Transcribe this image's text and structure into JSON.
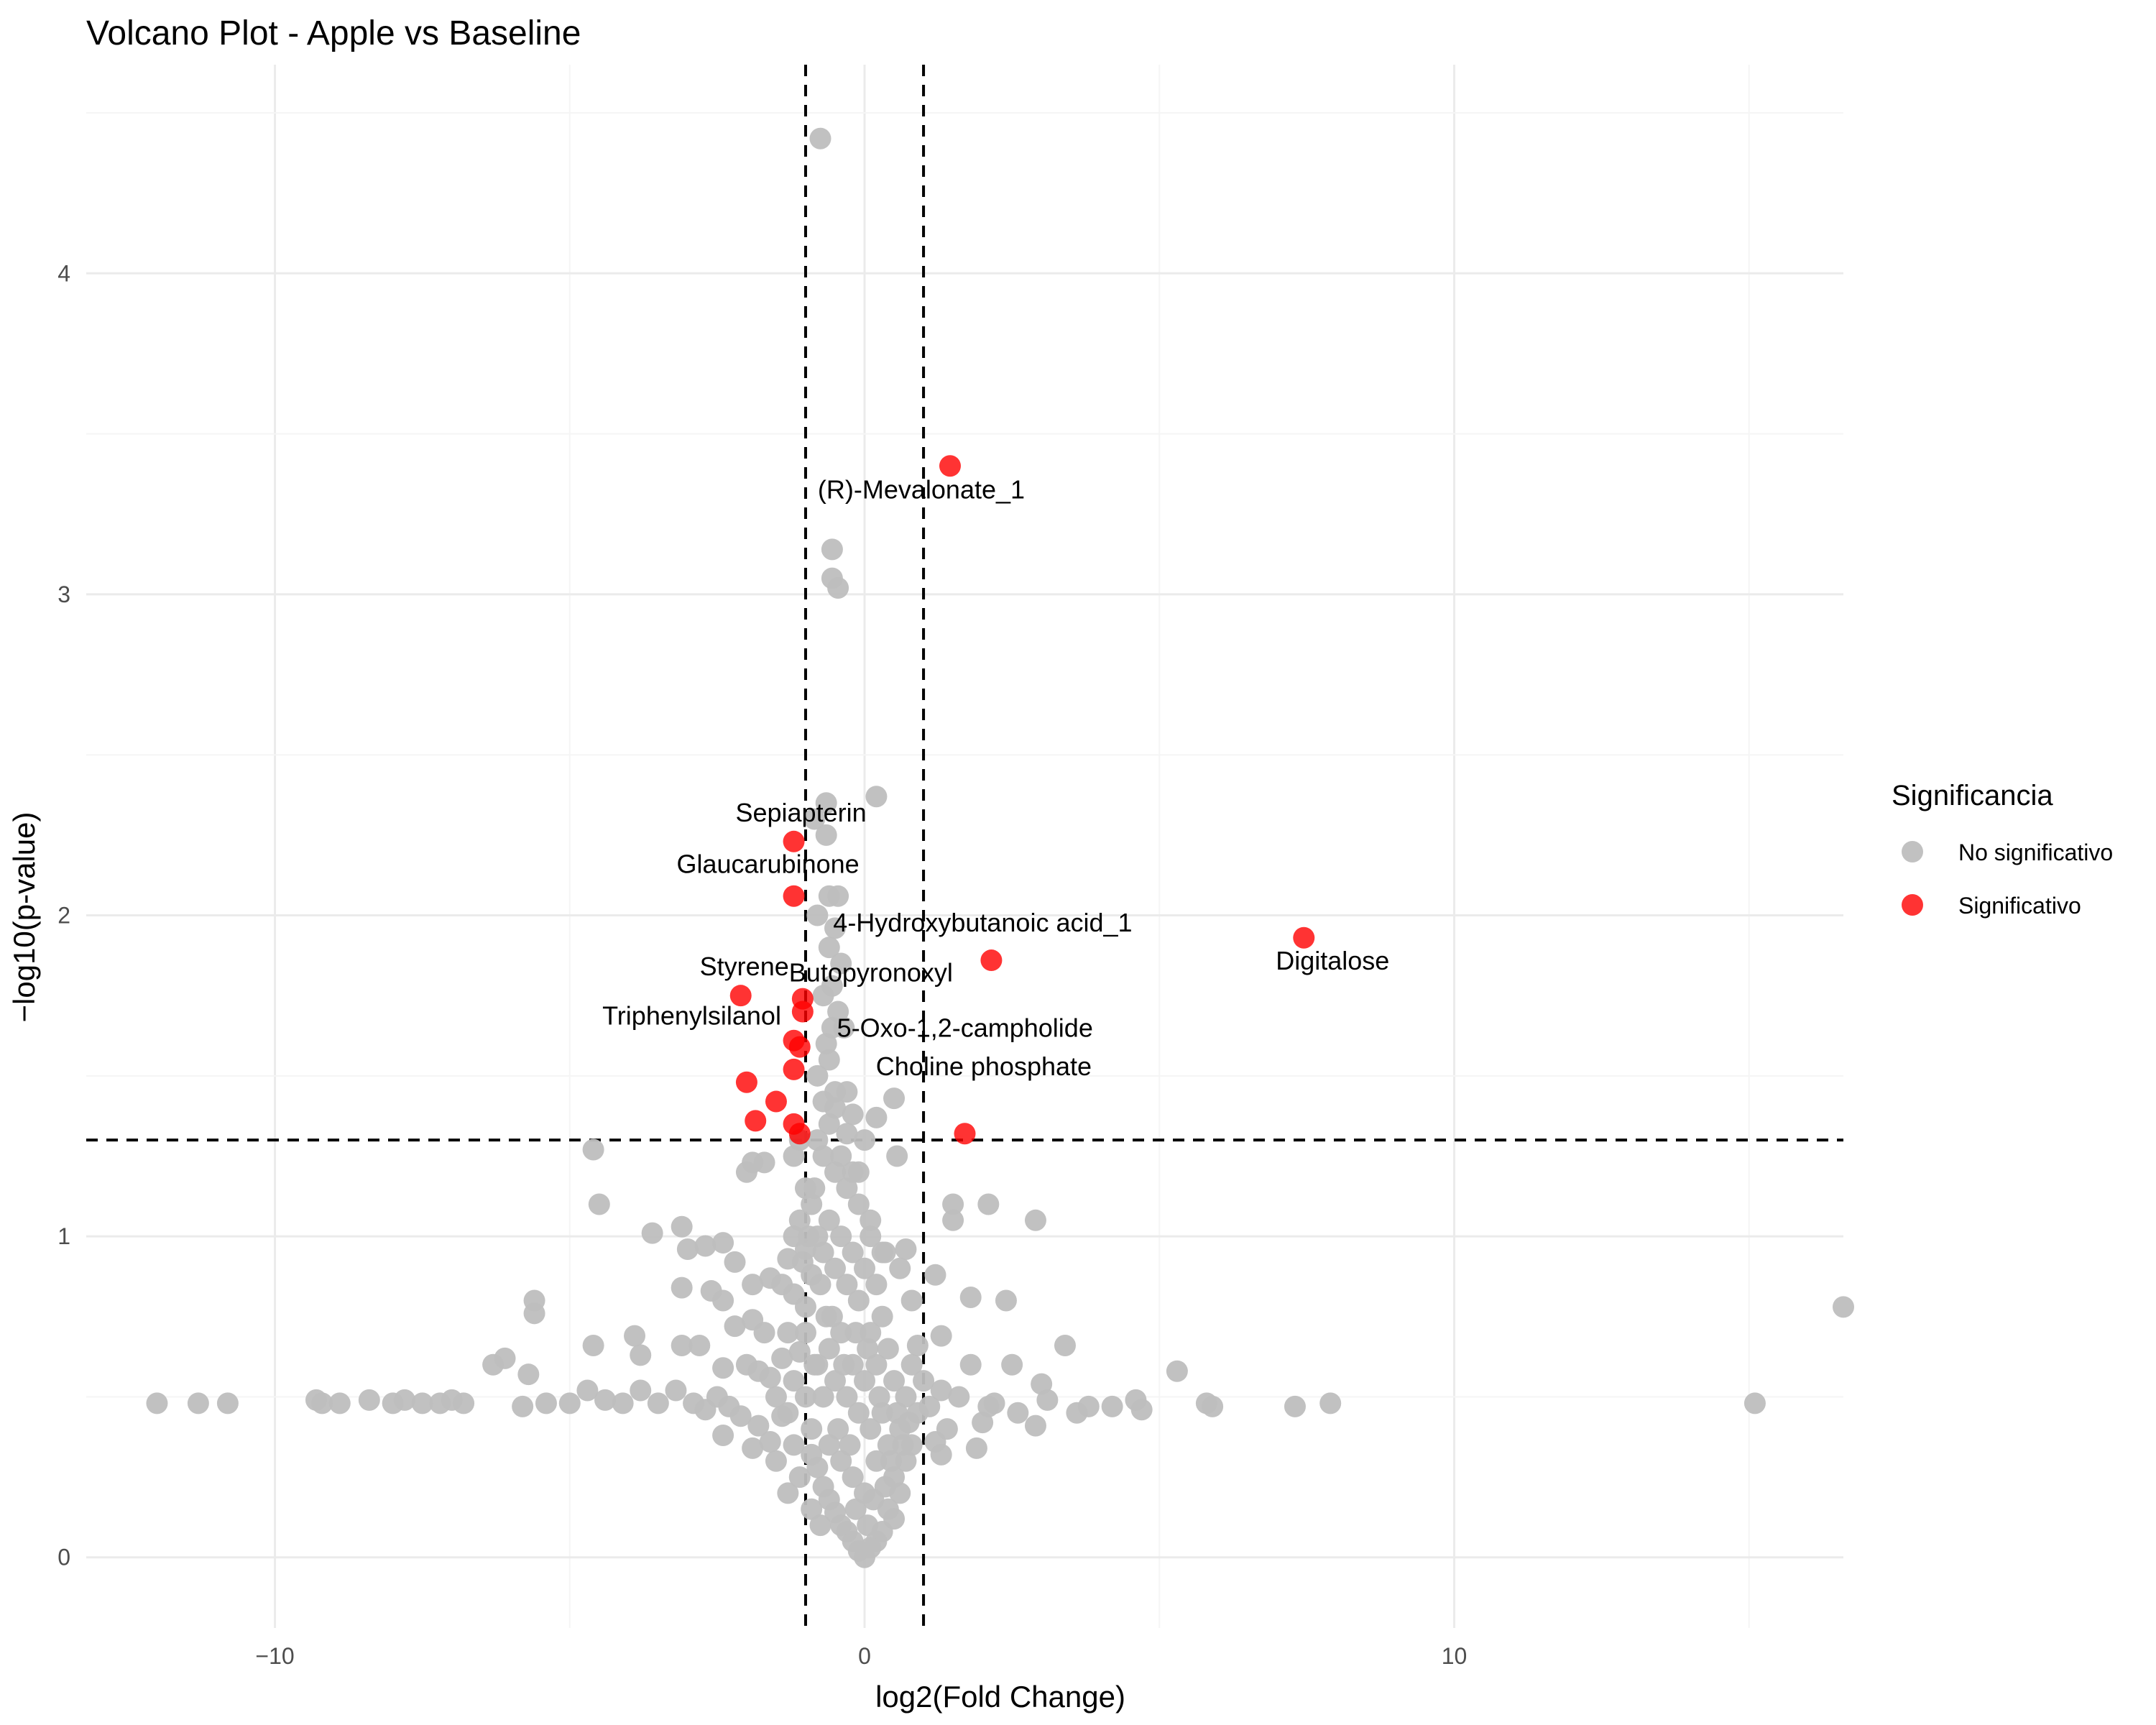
{
  "chart_data": {
    "type": "scatter",
    "title": "Volcano Plot - Apple vs Baseline",
    "xlabel": "log2(Fold Change)",
    "ylabel": "−log10(p-value)",
    "xlim": [
      -13.2,
      16.6
    ],
    "ylim": [
      -0.22,
      4.65
    ],
    "x_ticks": [
      -10,
      0,
      10
    ],
    "y_ticks": [
      0,
      1,
      2,
      3,
      4
    ],
    "grid": true,
    "legend_placement": "right",
    "legend_title": "Significancia",
    "thresholds": {
      "log2fc": [
        -1,
        1
      ],
      "neg_log10_p": 1.3
    },
    "colors": {
      "No significativo": "#bebebe",
      "Significativo": "#ff0000"
    },
    "series": [
      {
        "name": "No significativo",
        "points": [
          [
            -0.75,
            4.42
          ],
          [
            -0.55,
            3.14
          ],
          [
            -0.55,
            3.05
          ],
          [
            -0.45,
            3.02
          ],
          [
            -0.65,
            2.35
          ],
          [
            0.2,
            2.37
          ],
          [
            -0.85,
            2.3
          ],
          [
            -0.65,
            2.25
          ],
          [
            -0.6,
            2.06
          ],
          [
            -0.45,
            2.06
          ],
          [
            -0.8,
            2.0
          ],
          [
            -0.5,
            1.96
          ],
          [
            -0.6,
            1.9
          ],
          [
            -0.4,
            1.85
          ],
          [
            -0.55,
            1.78
          ],
          [
            -0.35,
            1.65
          ],
          [
            -0.6,
            1.55
          ],
          [
            -0.8,
            1.5
          ],
          [
            -0.3,
            1.45
          ],
          [
            -0.5,
            1.4
          ],
          [
            -0.2,
            1.38
          ],
          [
            0.5,
            1.43
          ],
          [
            0.2,
            1.37
          ],
          [
            -4.6,
            1.27
          ],
          [
            -4.5,
            1.1
          ],
          [
            -3.6,
            1.01
          ],
          [
            -1.9,
            1.23
          ],
          [
            -2.0,
            1.2
          ],
          [
            -1.7,
            1.23
          ],
          [
            0.55,
            1.25
          ],
          [
            -0.1,
            1.2
          ],
          [
            1.5,
            1.1
          ],
          [
            1.5,
            1.05
          ],
          [
            2.1,
            1.1
          ],
          [
            2.9,
            1.05
          ],
          [
            0.1,
            1.05
          ],
          [
            -3.1,
            1.03
          ],
          [
            -2.7,
            0.97
          ],
          [
            -2.4,
            0.98
          ],
          [
            -3.0,
            0.96
          ],
          [
            -2.2,
            0.92
          ],
          [
            -1.0,
            0.96
          ],
          [
            0.7,
            0.96
          ],
          [
            0.35,
            0.95
          ],
          [
            0.6,
            0.9
          ],
          [
            1.2,
            0.88
          ],
          [
            -3.1,
            0.84
          ],
          [
            -2.6,
            0.83
          ],
          [
            -2.4,
            0.8
          ],
          [
            -1.9,
            0.85
          ],
          [
            -1.6,
            0.87
          ],
          [
            1.8,
            0.81
          ],
          [
            2.4,
            0.8
          ],
          [
            0.8,
            0.8
          ],
          [
            -5.6,
            0.8
          ],
          [
            -5.6,
            0.76
          ],
          [
            -4.6,
            0.66
          ],
          [
            -3.9,
            0.69
          ],
          [
            -3.1,
            0.66
          ],
          [
            -2.8,
            0.66
          ],
          [
            -2.2,
            0.72
          ],
          [
            -1.9,
            0.74
          ],
          [
            -1.7,
            0.7
          ],
          [
            1.3,
            0.69
          ],
          [
            3.4,
            0.66
          ],
          [
            -6.1,
            0.62
          ],
          [
            -6.3,
            0.6
          ],
          [
            -5.7,
            0.57
          ],
          [
            -3.8,
            0.63
          ],
          [
            -2.4,
            0.59
          ],
          [
            -2.0,
            0.6
          ],
          [
            -1.8,
            0.58
          ],
          [
            1.8,
            0.6
          ],
          [
            2.5,
            0.6
          ],
          [
            5.3,
            0.58
          ],
          [
            4.6,
            0.49
          ],
          [
            4.7,
            0.46
          ],
          [
            3.0,
            0.54
          ],
          [
            3.1,
            0.49
          ],
          [
            3.8,
            0.47
          ],
          [
            4.2,
            0.47
          ],
          [
            3.6,
            0.45
          ],
          [
            2.6,
            0.45
          ],
          [
            2.9,
            0.41
          ],
          [
            2.2,
            0.48
          ],
          [
            2.1,
            0.47
          ],
          [
            1.6,
            0.5
          ],
          [
            1.3,
            0.52
          ],
          [
            1.1,
            0.47
          ],
          [
            5.8,
            0.48
          ],
          [
            5.9,
            0.47
          ],
          [
            7.3,
            0.47
          ],
          [
            7.9,
            0.48
          ],
          [
            15.1,
            0.48
          ],
          [
            16.6,
            0.78
          ],
          [
            -12.0,
            0.48
          ],
          [
            -11.3,
            0.48
          ],
          [
            -10.8,
            0.48
          ],
          [
            -9.3,
            0.49
          ],
          [
            -9.2,
            0.48
          ],
          [
            -8.9,
            0.48
          ],
          [
            -8.4,
            0.49
          ],
          [
            -8.0,
            0.48
          ],
          [
            -7.8,
            0.49
          ],
          [
            -7.5,
            0.48
          ],
          [
            -7.2,
            0.48
          ],
          [
            -7.0,
            0.49
          ],
          [
            -6.8,
            0.48
          ],
          [
            -5.8,
            0.47
          ],
          [
            -5.4,
            0.48
          ],
          [
            -5.0,
            0.48
          ],
          [
            -4.7,
            0.52
          ],
          [
            -4.4,
            0.49
          ],
          [
            -4.1,
            0.48
          ],
          [
            -3.8,
            0.52
          ],
          [
            -3.5,
            0.48
          ],
          [
            -3.2,
            0.52
          ],
          [
            -2.9,
            0.48
          ],
          [
            -2.7,
            0.46
          ],
          [
            -2.5,
            0.5
          ],
          [
            -2.3,
            0.47
          ],
          [
            -2.1,
            0.44
          ],
          [
            -2.4,
            0.38
          ],
          [
            -1.8,
            0.41
          ],
          [
            -1.9,
            0.34
          ],
          [
            -1.6,
            0.36
          ],
          [
            -1.2,
            0.35
          ],
          [
            -1.5,
            0.3
          ],
          [
            -1.3,
            0.2
          ],
          [
            -1.1,
            0.25
          ],
          [
            1.2,
            0.36
          ],
          [
            1.4,
            0.4
          ],
          [
            1.3,
            0.32
          ],
          [
            2.0,
            0.42
          ],
          [
            1.9,
            0.34
          ],
          [
            -1.4,
            0.85
          ],
          [
            -1.2,
            0.82
          ],
          [
            -1.0,
            0.78
          ],
          [
            -1.3,
            0.7
          ],
          [
            -1.1,
            0.64
          ],
          [
            -1.4,
            0.62
          ],
          [
            -1.2,
            0.55
          ],
          [
            -1.0,
            0.5
          ],
          [
            -1.3,
            0.45
          ],
          [
            -0.9,
            0.4
          ],
          [
            -1.5,
            0.5
          ],
          [
            -1.6,
            0.56
          ],
          [
            -1.4,
            0.44
          ],
          [
            -1.1,
            1.3
          ],
          [
            -1.2,
            1.25
          ],
          [
            -1.0,
            1.15
          ],
          [
            -0.9,
            1.1
          ],
          [
            -1.1,
            1.05
          ],
          [
            -0.95,
            1.0
          ],
          [
            -1.05,
            0.92
          ],
          [
            -0.9,
            0.88
          ],
          [
            -1.0,
            0.7
          ],
          [
            -0.85,
            0.6
          ],
          [
            -1.2,
            1.0
          ],
          [
            -1.3,
            0.93
          ],
          [
            0.9,
            0.66
          ],
          [
            0.8,
            0.6
          ],
          [
            1.0,
            0.55
          ],
          [
            0.7,
            0.5
          ],
          [
            0.9,
            0.45
          ],
          [
            0.6,
            0.4
          ],
          [
            0.8,
            0.35
          ],
          [
            0.7,
            0.3
          ],
          [
            0.5,
            0.25
          ],
          [
            0.6,
            0.2
          ],
          [
            0.4,
            0.15
          ],
          [
            0.5,
            0.12
          ],
          [
            0.3,
            0.08
          ],
          [
            0.2,
            0.05
          ],
          [
            0.1,
            0.03
          ],
          [
            0.0,
            0.0
          ],
          [
            -0.1,
            0.02
          ],
          [
            -0.2,
            0.05
          ],
          [
            -0.3,
            0.08
          ],
          [
            -0.4,
            0.1
          ],
          [
            -0.5,
            0.14
          ],
          [
            -0.6,
            0.18
          ],
          [
            -0.7,
            0.22
          ],
          [
            -0.8,
            0.28
          ],
          [
            -0.9,
            0.32
          ],
          [
            -0.6,
            0.35
          ],
          [
            -0.4,
            0.3
          ],
          [
            -0.2,
            0.25
          ],
          [
            0.0,
            0.2
          ],
          [
            0.2,
            0.3
          ],
          [
            0.4,
            0.35
          ],
          [
            0.3,
            0.45
          ],
          [
            0.1,
            0.4
          ],
          [
            -0.1,
            0.45
          ],
          [
            -0.3,
            0.5
          ],
          [
            -0.5,
            0.55
          ],
          [
            -0.7,
            0.5
          ],
          [
            -0.8,
            0.6
          ],
          [
            -0.6,
            0.65
          ],
          [
            -0.4,
            0.7
          ],
          [
            -0.2,
            0.6
          ],
          [
            0.0,
            0.55
          ],
          [
            0.2,
            0.6
          ],
          [
            0.4,
            0.65
          ],
          [
            0.5,
            0.55
          ],
          [
            0.3,
            0.75
          ],
          [
            0.1,
            0.7
          ],
          [
            -0.1,
            0.8
          ],
          [
            -0.3,
            0.85
          ],
          [
            -0.5,
            0.9
          ],
          [
            -0.7,
            0.95
          ],
          [
            -0.8,
            1.0
          ],
          [
            -0.6,
            1.05
          ],
          [
            -0.4,
            1.0
          ],
          [
            -0.2,
            0.95
          ],
          [
            0.0,
            0.9
          ],
          [
            0.2,
            0.85
          ],
          [
            0.3,
            0.95
          ],
          [
            0.1,
            1.0
          ],
          [
            -0.1,
            1.1
          ],
          [
            -0.3,
            1.15
          ],
          [
            -0.5,
            1.2
          ],
          [
            -0.7,
            1.25
          ],
          [
            -0.8,
            1.3
          ],
          [
            -0.6,
            1.35
          ],
          [
            -0.4,
            1.25
          ],
          [
            -0.2,
            1.2
          ],
          [
            0.0,
            1.3
          ],
          [
            -0.3,
            1.32
          ],
          [
            -0.5,
            1.45
          ],
          [
            -0.7,
            1.42
          ],
          [
            -0.65,
            1.6
          ],
          [
            -0.45,
            1.7
          ],
          [
            -0.7,
            1.75
          ],
          [
            -0.55,
            1.65
          ],
          [
            -0.85,
            1.15
          ],
          [
            -0.75,
            0.85
          ],
          [
            -0.65,
            0.75
          ],
          [
            -0.45,
            0.4
          ],
          [
            -0.25,
            0.35
          ],
          [
            -0.15,
            0.15
          ],
          [
            0.05,
            0.1
          ],
          [
            0.15,
            0.18
          ],
          [
            0.35,
            0.22
          ],
          [
            0.45,
            0.3
          ],
          [
            -0.9,
            0.15
          ],
          [
            -0.75,
            0.1
          ],
          [
            0.55,
            0.45
          ],
          [
            0.65,
            0.35
          ],
          [
            0.75,
            0.42
          ],
          [
            -0.35,
            0.6
          ],
          [
            -0.15,
            0.7
          ],
          [
            0.05,
            0.65
          ],
          [
            0.25,
            0.5
          ],
          [
            -0.55,
            0.75
          ]
        ]
      },
      {
        "name": "Significativo",
        "points": [
          [
            1.45,
            3.4
          ],
          [
            -1.2,
            2.23
          ],
          [
            -1.2,
            2.06
          ],
          [
            7.45,
            1.93
          ],
          [
            2.15,
            1.86
          ],
          [
            -2.1,
            1.75
          ],
          [
            -1.05,
            1.74
          ],
          [
            -1.05,
            1.7
          ],
          [
            -1.2,
            1.61
          ],
          [
            -1.1,
            1.59
          ],
          [
            -1.2,
            1.52
          ],
          [
            -2.0,
            1.48
          ],
          [
            -1.5,
            1.42
          ],
          [
            -1.85,
            1.36
          ],
          [
            -1.2,
            1.35
          ],
          [
            -1.1,
            1.32
          ],
          [
            1.7,
            1.32
          ]
        ]
      }
    ],
    "annotations": [
      {
        "text": "(R)-Mevalonate_1",
        "x": 1.45,
        "y": 3.4
      },
      {
        "text": "Sepiapterin",
        "x": -1.2,
        "y": 2.23
      },
      {
        "text": "Glaucarubinone",
        "x": -1.2,
        "y": 2.06
      },
      {
        "text": "4-Hydroxybutanoic acid_1",
        "x": 2.15,
        "y": 1.86
      },
      {
        "text": "Digitalose",
        "x": 7.45,
        "y": 1.93
      },
      {
        "text": "Styrene",
        "x": -2.1,
        "y": 1.75
      },
      {
        "text": "Butopyronoxyl",
        "x": -1.05,
        "y": 1.74
      },
      {
        "text": "Triphenylsilanol",
        "x": -1.2,
        "y": 1.61
      },
      {
        "text": "5-Oxo-1,2-campholide",
        "x": -1.1,
        "y": 1.59
      },
      {
        "text": "Choline phosphate",
        "x": -2.0,
        "y": 1.48
      }
    ],
    "legend": [
      {
        "label": "No significativo",
        "color": "#bebebe"
      },
      {
        "label": "Significativo",
        "color": "#ff0000"
      }
    ]
  }
}
